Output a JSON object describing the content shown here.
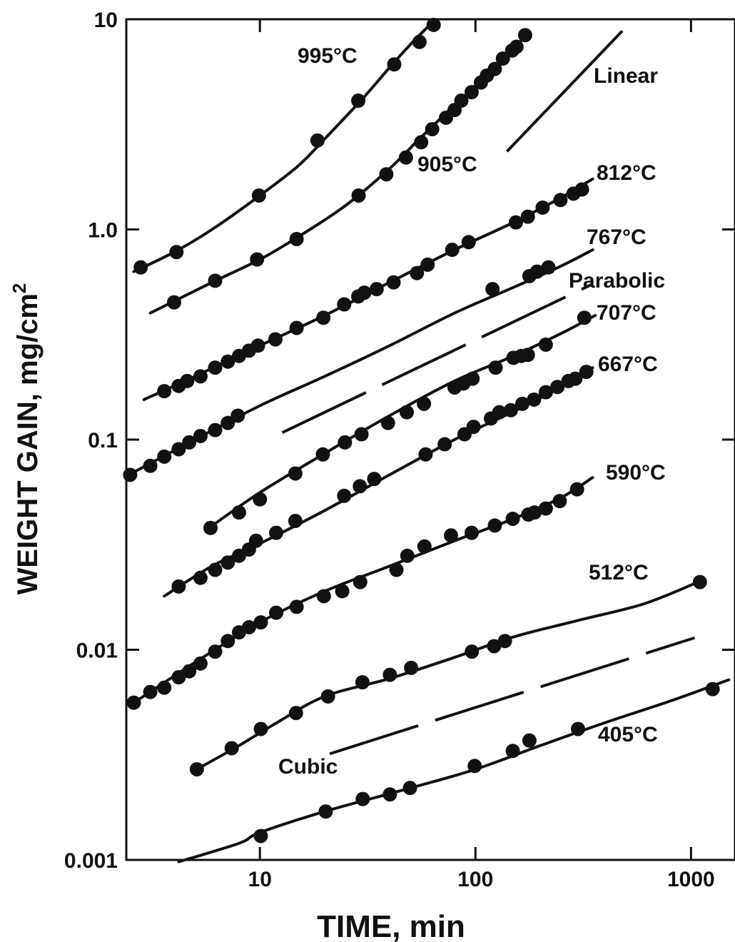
{
  "chart_data": {
    "type": "scatter",
    "title": "",
    "xlabel": "TIME, min",
    "ylabel": "WEIGHT GAIN, mg/cm",
    "ylabel_sup": "2",
    "x_scale": "log",
    "y_scale": "log",
    "xlim": [
      2.4,
      1600
    ],
    "ylim": [
      0.001,
      10
    ],
    "x_ticks": [
      10,
      100,
      1000
    ],
    "x_tick_labels": [
      "10",
      "100",
      "1000"
    ],
    "y_ticks": [
      0.001,
      0.01,
      0.1,
      1.0,
      10
    ],
    "y_tick_labels": [
      "0.001",
      "0.01",
      "0.1",
      "1.0",
      "10"
    ],
    "grid": false,
    "colors": {
      "ink": "#111111",
      "background": "#ffffff"
    },
    "series": [
      {
        "name": "995°C",
        "curve": [
          [
            2.6,
            0.63
          ],
          [
            4,
            0.78
          ],
          [
            6,
            1.0
          ],
          [
            10,
            1.45
          ],
          [
            15,
            2.0
          ],
          [
            20,
            2.7
          ],
          [
            30,
            4.2
          ],
          [
            40,
            5.9
          ],
          [
            50,
            7.6
          ],
          [
            62,
            9.5
          ]
        ],
        "points": [
          [
            2.8,
            0.66
          ],
          [
            4.1,
            0.78
          ],
          [
            9.9,
            1.45
          ],
          [
            18.5,
            2.65
          ],
          [
            28.6,
            4.1
          ],
          [
            42,
            6.1
          ],
          [
            55,
            7.8
          ],
          [
            64,
            9.4
          ]
        ]
      },
      {
        "name": "905°C",
        "curve": [
          [
            3.1,
            0.4
          ],
          [
            6,
            0.56
          ],
          [
            10,
            0.72
          ],
          [
            15,
            0.92
          ],
          [
            25,
            1.3
          ],
          [
            40,
            1.95
          ],
          [
            55,
            2.7
          ],
          [
            80,
            3.9
          ],
          [
            110,
            5.3
          ],
          [
            150,
            7.2
          ],
          [
            170,
            8.4
          ]
        ],
        "points": [
          [
            4,
            0.45
          ],
          [
            6.2,
            0.57
          ],
          [
            9.7,
            0.72
          ],
          [
            14.8,
            0.9
          ],
          [
            28.7,
            1.45
          ],
          [
            38.6,
            1.83
          ],
          [
            47.6,
            2.2
          ],
          [
            56,
            2.6
          ],
          [
            63,
            3.0
          ],
          [
            73,
            3.4
          ],
          [
            80,
            3.7
          ],
          [
            86,
            4.1
          ],
          [
            96,
            4.5
          ],
          [
            106,
            5.0
          ],
          [
            113,
            5.4
          ],
          [
            123,
            5.8
          ],
          [
            134,
            6.5
          ],
          [
            148,
            7.1
          ],
          [
            155,
            7.4
          ],
          [
            170,
            8.4
          ]
        ]
      },
      {
        "name": "812°C",
        "curve": [
          [
            2.9,
            0.155
          ],
          [
            5,
            0.2
          ],
          [
            10,
            0.28
          ],
          [
            20,
            0.39
          ],
          [
            40,
            0.56
          ],
          [
            80,
            0.8
          ],
          [
            150,
            1.08
          ],
          [
            250,
            1.42
          ],
          [
            350,
            1.74
          ]
        ],
        "points": [
          [
            3.6,
            0.17
          ],
          [
            4.2,
            0.18
          ],
          [
            4.6,
            0.19
          ],
          [
            5.3,
            0.2
          ],
          [
            6.2,
            0.22
          ],
          [
            7.1,
            0.235
          ],
          [
            8,
            0.25
          ],
          [
            8.9,
            0.265
          ],
          [
            9.8,
            0.28
          ],
          [
            11.8,
            0.3
          ],
          [
            14.8,
            0.34
          ],
          [
            19.7,
            0.38
          ],
          [
            24.6,
            0.44
          ],
          [
            28.6,
            0.48
          ],
          [
            30.5,
            0.5
          ],
          [
            34.8,
            0.52
          ],
          [
            41.7,
            0.56
          ],
          [
            53.5,
            0.62
          ],
          [
            60,
            0.68
          ],
          [
            78,
            0.8
          ],
          [
            93,
            0.87
          ],
          [
            154,
            1.08
          ],
          [
            175,
            1.15
          ],
          [
            205,
            1.27
          ],
          [
            248,
            1.38
          ],
          [
            285,
            1.48
          ],
          [
            312,
            1.55
          ]
        ]
      },
      {
        "name": "767°C",
        "curve": [
          [
            2.6,
            0.07
          ],
          [
            5,
            0.1
          ],
          [
            10,
            0.145
          ],
          [
            20,
            0.2
          ],
          [
            40,
            0.28
          ],
          [
            80,
            0.4
          ],
          [
            150,
            0.53
          ],
          [
            250,
            0.67
          ],
          [
            350,
            0.8
          ]
        ],
        "points": [
          [
            2.5,
            0.068
          ],
          [
            3.1,
            0.075
          ],
          [
            3.6,
            0.083
          ],
          [
            4.2,
            0.09
          ],
          [
            4.7,
            0.097
          ],
          [
            5.3,
            0.104
          ],
          [
            6.2,
            0.111
          ],
          [
            7.1,
            0.12
          ],
          [
            7.9,
            0.13
          ],
          [
            120,
            0.52
          ],
          [
            178,
            0.6
          ],
          [
            193,
            0.63
          ],
          [
            218,
            0.66
          ]
        ]
      },
      {
        "name": "707°C",
        "curve": [
          [
            5.8,
            0.038
          ],
          [
            10,
            0.056
          ],
          [
            20,
            0.086
          ],
          [
            40,
            0.13
          ],
          [
            80,
            0.19
          ],
          [
            150,
            0.25
          ],
          [
            250,
            0.32
          ],
          [
            360,
            0.39
          ]
        ],
        "points": [
          [
            5.9,
            0.038
          ],
          [
            8,
            0.045
          ],
          [
            10,
            0.052
          ],
          [
            14.6,
            0.069
          ],
          [
            19.6,
            0.085
          ],
          [
            24.8,
            0.097
          ],
          [
            29.6,
            0.106
          ],
          [
            39.3,
            0.12
          ],
          [
            48,
            0.135
          ],
          [
            57.7,
            0.148
          ],
          [
            80,
            0.177
          ],
          [
            88,
            0.185
          ],
          [
            97,
            0.195
          ],
          [
            124,
            0.22
          ],
          [
            150,
            0.245
          ],
          [
            163,
            0.25
          ],
          [
            175,
            0.253
          ],
          [
            212,
            0.283
          ],
          [
            320,
            0.38
          ]
        ]
      },
      {
        "name": "667°C",
        "curve": [
          [
            3.6,
            0.018
          ],
          [
            6,
            0.025
          ],
          [
            10,
            0.032
          ],
          [
            20,
            0.046
          ],
          [
            40,
            0.068
          ],
          [
            80,
            0.1
          ],
          [
            150,
            0.136
          ],
          [
            250,
            0.178
          ],
          [
            350,
            0.22
          ]
        ],
        "points": [
          [
            4.2,
            0.02
          ],
          [
            5.3,
            0.022
          ],
          [
            6.2,
            0.024
          ],
          [
            7.1,
            0.026
          ],
          [
            8,
            0.028
          ],
          [
            8.9,
            0.03
          ],
          [
            9.6,
            0.033
          ],
          [
            11.9,
            0.036
          ],
          [
            14.6,
            0.041
          ],
          [
            24.6,
            0.054
          ],
          [
            29.1,
            0.06
          ],
          [
            33.9,
            0.065
          ],
          [
            58.7,
            0.085
          ],
          [
            72,
            0.095
          ],
          [
            89,
            0.106
          ],
          [
            98,
            0.115
          ],
          [
            118,
            0.126
          ],
          [
            129,
            0.135
          ],
          [
            146,
            0.138
          ],
          [
            165,
            0.148
          ],
          [
            187,
            0.155
          ],
          [
            212,
            0.168
          ],
          [
            240,
            0.178
          ],
          [
            270,
            0.19
          ],
          [
            291,
            0.195
          ],
          [
            327,
            0.21
          ]
        ]
      },
      {
        "name": "590°C",
        "curve": [
          [
            2.6,
            0.0056
          ],
          [
            5,
            0.0087
          ],
          [
            10,
            0.0135
          ],
          [
            20,
            0.019
          ],
          [
            40,
            0.025
          ],
          [
            80,
            0.033
          ],
          [
            150,
            0.042
          ],
          [
            250,
            0.053
          ],
          [
            350,
            0.066
          ]
        ],
        "points": [
          [
            2.6,
            0.0056
          ],
          [
            3.1,
            0.0063
          ],
          [
            3.6,
            0.0066
          ],
          [
            4.2,
            0.0074
          ],
          [
            4.7,
            0.0079
          ],
          [
            5.3,
            0.0086
          ],
          [
            6.2,
            0.0098
          ],
          [
            7.1,
            0.011
          ],
          [
            8,
            0.0121
          ],
          [
            8.9,
            0.0128
          ],
          [
            10.1,
            0.0135
          ],
          [
            11.9,
            0.015
          ],
          [
            14.8,
            0.016
          ],
          [
            19.8,
            0.018
          ],
          [
            24.1,
            0.019
          ],
          [
            29.2,
            0.021
          ],
          [
            43,
            0.024
          ],
          [
            48.3,
            0.028
          ],
          [
            58,
            0.031
          ],
          [
            77,
            0.035
          ],
          [
            96,
            0.036
          ],
          [
            123,
            0.039
          ],
          [
            149,
            0.042
          ],
          [
            176,
            0.044
          ],
          [
            188,
            0.045
          ],
          [
            212,
            0.047
          ],
          [
            246,
            0.051
          ],
          [
            296,
            0.058
          ]
        ]
      },
      {
        "name": "512°C",
        "curve": [
          [
            5.1,
            0.0027
          ],
          [
            8,
            0.0035
          ],
          [
            12,
            0.0045
          ],
          [
            20,
            0.006
          ],
          [
            40,
            0.0073
          ],
          [
            80,
            0.0092
          ],
          [
            150,
            0.0115
          ],
          [
            300,
            0.0138
          ],
          [
            600,
            0.0165
          ],
          [
            1080,
            0.021
          ]
        ],
        "points": [
          [
            5.1,
            0.0027
          ],
          [
            7.4,
            0.0034
          ],
          [
            10.1,
            0.0042
          ],
          [
            14.7,
            0.005
          ],
          [
            20.7,
            0.006
          ],
          [
            29.9,
            0.007
          ],
          [
            40.1,
            0.0076
          ],
          [
            50.3,
            0.0082
          ],
          [
            96.2,
            0.0098
          ],
          [
            122,
            0.0104
          ],
          [
            137,
            0.011
          ],
          [
            1100,
            0.021
          ]
        ]
      },
      {
        "name": "405°C",
        "curve": [
          [
            4.2,
            0.00098
          ],
          [
            8,
            0.0012
          ],
          [
            10,
            0.00135
          ],
          [
            20,
            0.0017
          ],
          [
            50,
            0.0022
          ],
          [
            100,
            0.0027
          ],
          [
            200,
            0.0035
          ],
          [
            400,
            0.0045
          ],
          [
            800,
            0.0057
          ],
          [
            1500,
            0.0072
          ]
        ],
        "points": [
          [
            10.1,
            0.0013
          ],
          [
            20.2,
            0.0017
          ],
          [
            30,
            0.00195
          ],
          [
            40.1,
            0.00205
          ],
          [
            49.7,
            0.0022
          ],
          [
            99.2,
            0.0028
          ],
          [
            149,
            0.0033
          ],
          [
            178,
            0.0037
          ],
          [
            299,
            0.0042
          ],
          [
            1260,
            0.0065
          ]
        ]
      }
    ],
    "reference_lines": [
      {
        "name": "Linear",
        "style": "solid",
        "points": [
          [
            140,
            2.35
          ],
          [
            480,
            8.8
          ]
        ]
      },
      {
        "name": "Parabolic",
        "style": "dashed",
        "points": [
          [
            12.7,
            0.108
          ],
          [
            350,
            0.55
          ]
        ]
      },
      {
        "name": "Cubic",
        "style": "dashed",
        "points": [
          [
            21.1,
            0.0032
          ],
          [
            1040,
            0.0114
          ]
        ]
      }
    ],
    "series_labels": {
      "995": "995°C",
      "905": "905°C",
      "812": "812°C",
      "767": "767°C",
      "707": "707°C",
      "667": "667°C",
      "590": "590°C",
      "512": "512°C",
      "405": "405°C",
      "linear": "Linear",
      "parabolic": "Parabolic",
      "cubic": "Cubic"
    }
  }
}
